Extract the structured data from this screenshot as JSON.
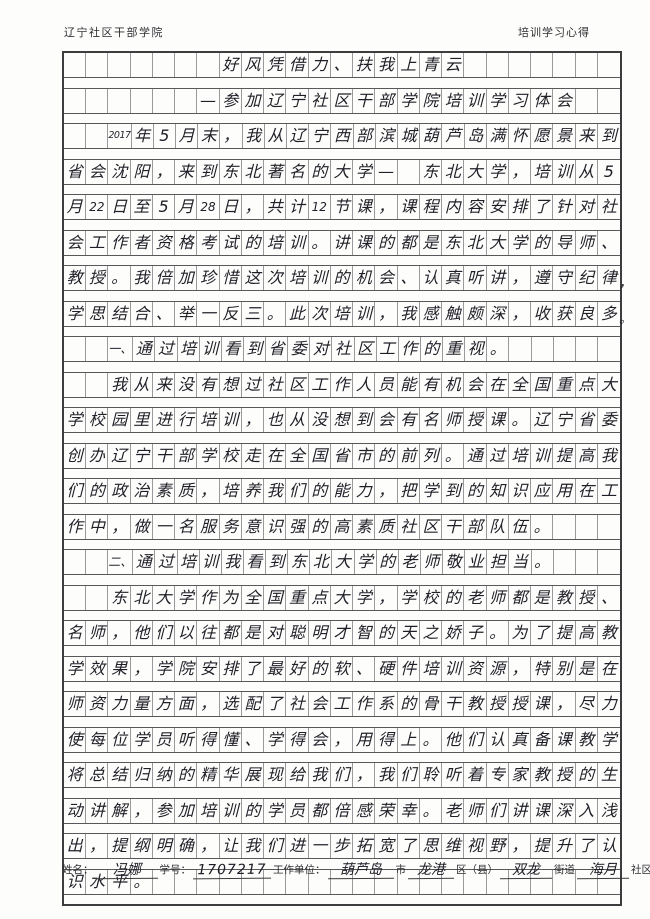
{
  "header": {
    "left": "辽宁社区干部学院",
    "right": "培训学习心得"
  },
  "sheet": {
    "columns": 25,
    "row_count": 24,
    "ink_color": "#1f1f28",
    "grid_line_color": "#58585a",
    "title_line": "好风凭借力、扶我上青云",
    "subtitle_line": "—参加辽宁社区干部学院培训学习体会",
    "rows": [
      {
        "cells": [
          "",
          "",
          "",
          "",
          "",
          "",
          "",
          "好",
          "风",
          "凭",
          "借",
          "力",
          "、",
          "扶",
          "我",
          "上",
          "青",
          "云",
          "",
          "",
          "",
          "",
          "",
          "",
          ""
        ],
        "overflow": ""
      },
      {
        "cells": [
          "",
          "",
          "",
          "",
          "",
          "",
          "—",
          "参",
          "加",
          "辽",
          "宁",
          "社",
          "区",
          "干",
          "部",
          "学",
          "院",
          "培",
          "训",
          "学",
          "习",
          "体",
          "会",
          "",
          ""
        ],
        "overflow": ""
      },
      {
        "cells": [
          "",
          "",
          "2017",
          "年",
          "5",
          "月",
          "末",
          "，",
          "我",
          "从",
          "辽",
          "宁",
          "西",
          "部",
          "滨",
          "城",
          "葫",
          "芦",
          "岛",
          "满",
          "怀",
          "愿",
          "景",
          "来",
          "到"
        ],
        "overflow": ""
      },
      {
        "cells": [
          "省",
          "会",
          "沈",
          "阳",
          "，",
          "来",
          "到",
          "东",
          "北",
          "著",
          "名",
          "的",
          "大",
          "学",
          "—",
          "",
          "东",
          "北",
          "大",
          "学",
          "，",
          "培",
          "训",
          "从",
          "5"
        ],
        "overflow": ""
      },
      {
        "cells": [
          "月",
          "22",
          "日",
          "至",
          "5",
          "月",
          "28",
          "日",
          "，",
          "共",
          "计",
          "12",
          "节",
          "课",
          "，",
          "课",
          "程",
          "内",
          "容",
          "安",
          "排",
          "了",
          "针",
          "对",
          "社"
        ],
        "overflow": ""
      },
      {
        "cells": [
          "会",
          "工",
          "作",
          "者",
          "资",
          "格",
          "考",
          "试",
          "的",
          "培",
          "训",
          "。",
          "讲",
          "课",
          "的",
          "都",
          "是",
          "东",
          "北",
          "大",
          "学",
          "的",
          "导",
          "师",
          "、"
        ],
        "overflow": ""
      },
      {
        "cells": [
          "教",
          "授",
          "。",
          "我",
          "倍",
          "加",
          "珍",
          "惜",
          "这",
          "次",
          "培",
          "训",
          "的",
          "机",
          "会",
          "、",
          "认",
          "真",
          "听",
          "讲",
          "，",
          "遵",
          "守",
          "纪",
          "律"
        ],
        "overflow": "，"
      },
      {
        "cells": [
          "学",
          "思",
          "结",
          "合",
          "、",
          "举",
          "一",
          "反",
          "三",
          "。",
          "此",
          "次",
          "培",
          "训",
          "，",
          "我",
          "感",
          "触",
          "颇",
          "深",
          "，",
          "收",
          "获",
          "良",
          "多"
        ],
        "overflow": "。"
      },
      {
        "cells": [
          "",
          "",
          "一、",
          "通",
          "过",
          "培",
          "训",
          "看",
          "到",
          "省",
          "委",
          "对",
          "社",
          "区",
          "工",
          "作",
          "的",
          "重",
          "视",
          "。",
          "",
          "",
          "",
          "",
          ""
        ],
        "overflow": ""
      },
      {
        "cells": [
          "",
          "",
          "我",
          "从",
          "来",
          "没",
          "有",
          "想",
          "过",
          "社",
          "区",
          "工",
          "作",
          "人",
          "员",
          "能",
          "有",
          "机",
          "会",
          "在",
          "全",
          "国",
          "重",
          "点",
          "大"
        ],
        "overflow": ""
      },
      {
        "cells": [
          "学",
          "校",
          "园",
          "里",
          "进",
          "行",
          "培",
          "训",
          "，",
          "也",
          "从",
          "没",
          "想",
          "到",
          "会",
          "有",
          "名",
          "师",
          "授",
          "课",
          "。",
          "辽",
          "宁",
          "省",
          "委"
        ],
        "overflow": ""
      },
      {
        "cells": [
          "创",
          "办",
          "辽",
          "宁",
          "干",
          "部",
          "学",
          "校",
          "走",
          "在",
          "全",
          "国",
          "省",
          "市",
          "的",
          "前",
          "列",
          "。",
          "通",
          "过",
          "培",
          "训",
          "提",
          "高",
          "我"
        ],
        "overflow": ""
      },
      {
        "cells": [
          "们",
          "的",
          "政",
          "治",
          "素",
          "质",
          "，",
          "培",
          "养",
          "我",
          "们",
          "的",
          "能",
          "力",
          "，",
          "把",
          "学",
          "到",
          "的",
          "知",
          "识",
          "应",
          "用",
          "在",
          "工"
        ],
        "overflow": ""
      },
      {
        "cells": [
          "作",
          "中",
          "，",
          "做",
          "一",
          "名",
          "服",
          "务",
          "意",
          "识",
          "强",
          "的",
          "高",
          "素",
          "质",
          "社",
          "区",
          "干",
          "部",
          "队",
          "伍",
          "。",
          "",
          "",
          ""
        ],
        "overflow": ""
      },
      {
        "cells": [
          "",
          "",
          "二、",
          "通",
          "过",
          "培",
          "训",
          "我",
          "看",
          "到",
          "东",
          "北",
          "大",
          "学",
          "的",
          "老",
          "师",
          "敬",
          "业",
          "担",
          "当",
          "。",
          "",
          "",
          ""
        ],
        "overflow": ""
      },
      {
        "cells": [
          "",
          "",
          "东",
          "北",
          "大",
          "学",
          "作",
          "为",
          "全",
          "国",
          "重",
          "点",
          "大",
          "学",
          "，",
          "学",
          "校",
          "的",
          "老",
          "师",
          "都",
          "是",
          "教",
          "授",
          "、"
        ],
        "overflow": ""
      },
      {
        "cells": [
          "名",
          "师",
          "，",
          "他",
          "们",
          "以",
          "往",
          "都",
          "是",
          "对",
          "聪",
          "明",
          "才",
          "智",
          "的",
          "天",
          "之",
          "娇",
          "子",
          "。",
          "为",
          "了",
          "提",
          "高",
          "教"
        ],
        "overflow": ""
      },
      {
        "cells": [
          "学",
          "效",
          "果",
          "，",
          "学",
          "院",
          "安",
          "排",
          "了",
          "最",
          "好",
          "的",
          "软",
          "、",
          "硬",
          "件",
          "培",
          "训",
          "资",
          "源",
          "，",
          "特",
          "别",
          "是",
          "在"
        ],
        "overflow": ""
      },
      {
        "cells": [
          "师",
          "资",
          "力",
          "量",
          "方",
          "面",
          "，",
          "选",
          "配",
          "了",
          "社",
          "会",
          "工",
          "作",
          "系",
          "的",
          "骨",
          "干",
          "教",
          "授",
          "授",
          "课",
          "，",
          "尽",
          "力"
        ],
        "overflow": ""
      },
      {
        "cells": [
          "使",
          "每",
          "位",
          "学",
          "员",
          "听",
          "得",
          "懂",
          "、",
          "学",
          "得",
          "会",
          "，",
          "用",
          "得",
          "上",
          "。",
          "他",
          "们",
          "认",
          "真",
          "备",
          "课",
          "教",
          "学"
        ],
        "overflow": ""
      },
      {
        "cells": [
          "将",
          "总",
          "结",
          "归",
          "纳",
          "的",
          "精",
          "华",
          "展",
          "现",
          "给",
          "我",
          "们",
          "，",
          "我",
          "们",
          "聆",
          "听",
          "着",
          "专",
          "家",
          "教",
          "授",
          "的",
          "生"
        ],
        "overflow": ""
      },
      {
        "cells": [
          "动",
          "讲",
          "解",
          "，",
          "参",
          "加",
          "培",
          "训",
          "的",
          "学",
          "员",
          "都",
          "倍",
          "感",
          "荣",
          "幸",
          "。",
          "老",
          "师",
          "们",
          "讲",
          "课",
          "深",
          "入",
          "浅"
        ],
        "overflow": ""
      },
      {
        "cells": [
          "出",
          "，",
          "提",
          "纲",
          "明",
          "确",
          "，",
          "让",
          "我",
          "们",
          "进",
          "一",
          "步",
          "拓",
          "宽",
          "了",
          "思",
          "维",
          "视",
          "野",
          "，",
          "提",
          "升",
          "了",
          "认"
        ],
        "overflow": ""
      },
      {
        "cells": [
          "识",
          "水",
          "平",
          "。",
          "",
          "",
          "",
          "",
          "",
          "",
          "",
          "",
          "",
          "",
          "",
          "",
          "",
          "",
          "",
          "",
          "",
          "",
          "",
          "",
          ""
        ],
        "overflow": ""
      }
    ]
  },
  "footer": {
    "name_label": "姓名：",
    "name_value": "冯娜",
    "id_label": "学号：",
    "id_value": "1707217",
    "unit_label": "工作单位：",
    "city_value": "葫芦岛",
    "city_suffix": "市",
    "district_value": "龙港",
    "district_suffix": "区（县）",
    "street_value": "双龙",
    "street_suffix": "街道",
    "community_value": "海月",
    "community_suffix": "社区"
  }
}
